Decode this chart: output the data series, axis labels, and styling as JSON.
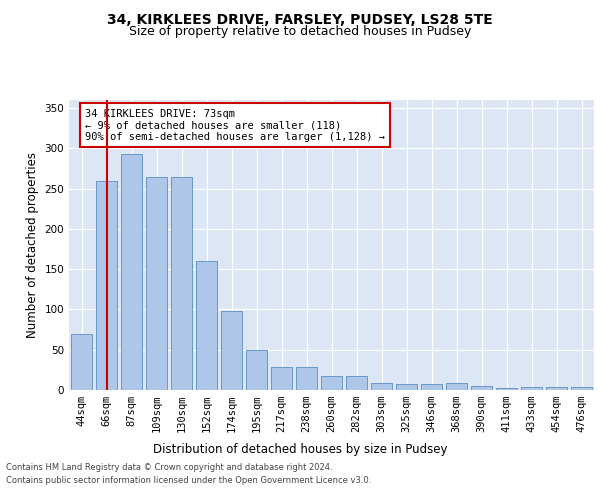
{
  "title1": "34, KIRKLEES DRIVE, FARSLEY, PUDSEY, LS28 5TE",
  "title2": "Size of property relative to detached houses in Pudsey",
  "xlabel": "Distribution of detached houses by size in Pudsey",
  "ylabel": "Number of detached properties",
  "categories": [
    "44sqm",
    "66sqm",
    "87sqm",
    "109sqm",
    "130sqm",
    "152sqm",
    "174sqm",
    "195sqm",
    "217sqm",
    "238sqm",
    "260sqm",
    "282sqm",
    "303sqm",
    "325sqm",
    "346sqm",
    "368sqm",
    "390sqm",
    "411sqm",
    "433sqm",
    "454sqm",
    "476sqm"
  ],
  "values": [
    70,
    260,
    293,
    265,
    264,
    160,
    98,
    50,
    28,
    28,
    18,
    18,
    9,
    8,
    8,
    9,
    5,
    3,
    4,
    4,
    4
  ],
  "bar_color": "#aec6e8",
  "bar_edge_color": "#5a8fc2",
  "vline_x": 1,
  "vline_color": "#cc0000",
  "annotation_line1": "34 KIRKLEES DRIVE: 73sqm",
  "annotation_line2": "← 9% of detached houses are smaller (118)",
  "annotation_line3": "90% of semi-detached houses are larger (1,128) →",
  "annotation_box_color": "#cc0000",
  "ylim": [
    0,
    360
  ],
  "yticks": [
    0,
    50,
    100,
    150,
    200,
    250,
    300,
    350
  ],
  "background_color": "#dce6f5",
  "footer1": "Contains HM Land Registry data © Crown copyright and database right 2024.",
  "footer2": "Contains public sector information licensed under the Open Government Licence v3.0.",
  "title1_fontsize": 10,
  "title2_fontsize": 9,
  "xlabel_fontsize": 8.5,
  "ylabel_fontsize": 8.5,
  "tick_fontsize": 7.5,
  "annotation_fontsize": 7.5,
  "footer_fontsize": 6.0
}
